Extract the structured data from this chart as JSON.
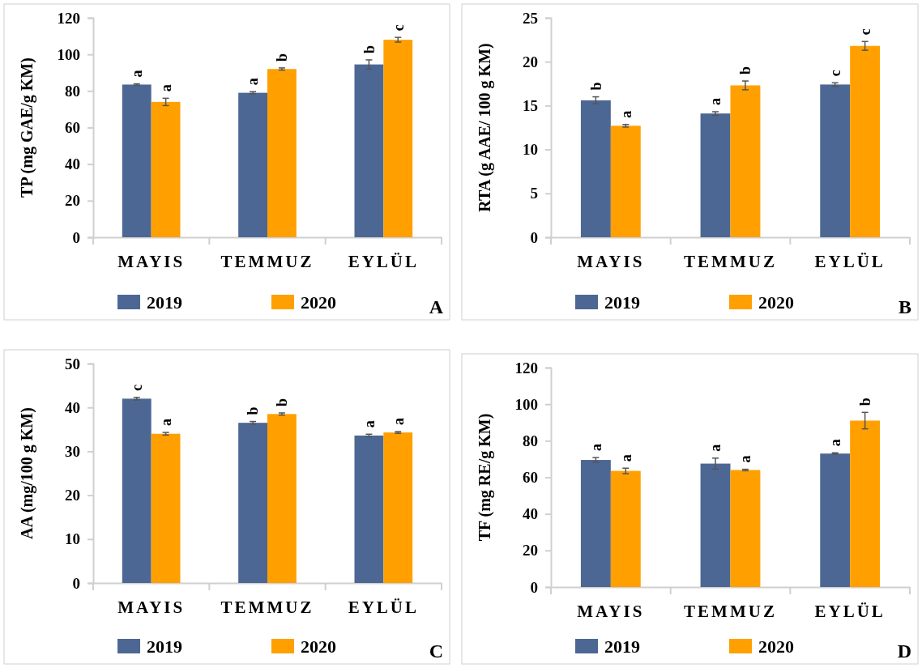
{
  "chart_data": [
    {
      "type": "bar",
      "ylabel": "TP (mg GAE/g KM)",
      "categories": [
        "MAYIS",
        "TEMMUZ",
        "EYLÜL"
      ],
      "ylim": [
        0,
        120
      ],
      "yticks": [
        0,
        20,
        40,
        60,
        80,
        100,
        120
      ],
      "legend": "bottom",
      "grid": false,
      "annotations": [
        "A"
      ],
      "series": [
        {
          "name": "2019",
          "color": "#4d6794",
          "values": [
            83.5,
            79,
            94.5
          ],
          "errors": [
            0.4,
            0.6,
            2.5
          ],
          "value_labels": [
            "a",
            "a",
            "b"
          ]
        },
        {
          "name": "2020",
          "color": "#ffa000",
          "values": [
            74,
            92,
            108
          ],
          "errors": [
            2,
            0.6,
            1.3
          ],
          "value_labels": [
            "a",
            "b",
            "c"
          ]
        }
      ]
    },
    {
      "type": "bar",
      "ylabel": "RTA (g AAE/ 100 g KM)",
      "categories": [
        "MAYIS",
        "TEMMUZ",
        "EYLÜL"
      ],
      "ylim": [
        0,
        25
      ],
      "yticks": [
        0,
        5,
        10,
        15,
        20,
        25
      ],
      "legend": "bottom",
      "grid": false,
      "annotations": [
        "B"
      ],
      "series": [
        {
          "name": "2019",
          "color": "#4d6794",
          "values": [
            15.6,
            14.1,
            17.4
          ],
          "errors": [
            0.4,
            0.2,
            0.2
          ],
          "value_labels": [
            "b",
            "a",
            "c"
          ]
        },
        {
          "name": "2020",
          "color": "#ffa000",
          "values": [
            12.7,
            17.3,
            21.8
          ],
          "errors": [
            0.15,
            0.5,
            0.5
          ],
          "value_labels": [
            "a",
            "b",
            "c"
          ]
        }
      ]
    },
    {
      "type": "bar",
      "ylabel": "AA (mg/100 g KM)",
      "categories": [
        "MAYIS",
        "TEMMUZ",
        "EYLÜL"
      ],
      "ylim": [
        0,
        50
      ],
      "yticks": [
        0,
        10,
        20,
        30,
        40,
        50
      ],
      "legend": "bottom",
      "grid": false,
      "annotations": [
        "C"
      ],
      "series": [
        {
          "name": "2019",
          "color": "#4d6794",
          "values": [
            42,
            36.5,
            33.6
          ],
          "errors": [
            0.3,
            0.3,
            0.3
          ],
          "value_labels": [
            "c",
            "b",
            "a"
          ]
        },
        {
          "name": "2020",
          "color": "#ffa000",
          "values": [
            34,
            38.5,
            34.3
          ],
          "errors": [
            0.3,
            0.25,
            0.2
          ],
          "value_labels": [
            "a",
            "b",
            "a"
          ]
        }
      ]
    },
    {
      "type": "bar",
      "ylabel": "TF (mg RE/g KM)",
      "categories": [
        "MAYIS",
        "TEMMUZ",
        "EYLÜL"
      ],
      "ylim": [
        0,
        120
      ],
      "yticks": [
        0,
        20,
        40,
        60,
        80,
        100,
        120
      ],
      "legend": "bottom",
      "grid": false,
      "annotations": [
        "D"
      ],
      "series": [
        {
          "name": "2019",
          "color": "#4d6794",
          "values": [
            69.5,
            67.5,
            73
          ],
          "errors": [
            1.3,
            3,
            0.4
          ],
          "value_labels": [
            "a",
            "a",
            "a"
          ]
        },
        {
          "name": "2020",
          "color": "#ffa000",
          "values": [
            63.5,
            64,
            91
          ],
          "errors": [
            1.5,
            0.4,
            4.5
          ],
          "value_labels": [
            "a",
            "a",
            "b"
          ]
        }
      ]
    }
  ]
}
